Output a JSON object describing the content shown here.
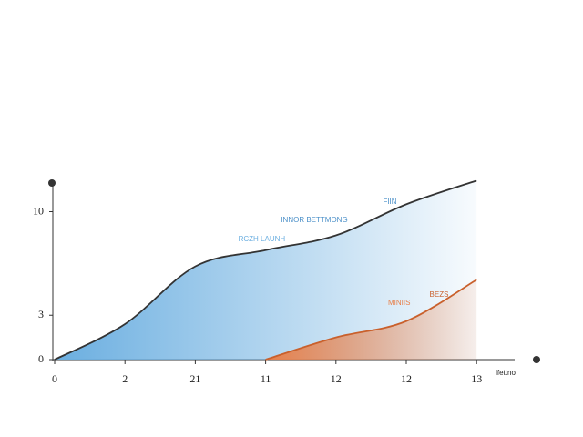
{
  "chart_data": {
    "type": "area",
    "categories": [
      "0",
      "2",
      "21",
      "11",
      "12",
      "12",
      "13"
    ],
    "series": [
      {
        "name": "RCZH LAUNH",
        "color": "#6aaee0",
        "values": [
          0,
          2.4,
          6.3,
          7.4,
          8.4,
          10.5,
          12.1
        ]
      },
      {
        "name": "MINIIS",
        "color": "#e8804a",
        "values": [
          null,
          null,
          null,
          0,
          1.5,
          2.6,
          5.4
        ]
      }
    ],
    "ylim": [
      0,
      12
    ],
    "yticks": [
      0,
      3,
      10
    ],
    "annotations": [
      "INNOR BETTMONG",
      "FIIN",
      "BEZS"
    ],
    "x_label": "lfettno"
  }
}
